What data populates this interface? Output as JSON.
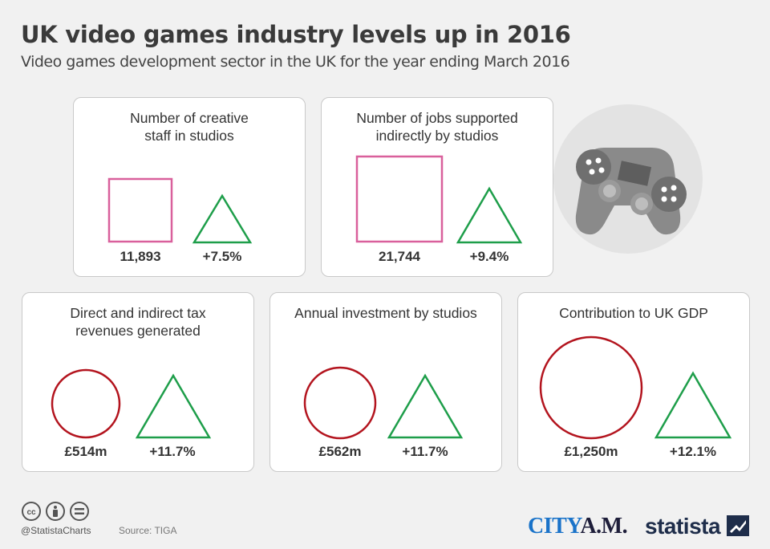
{
  "header": {
    "title": "UK video games industry levels up in 2016",
    "subtitle": "Video games development sector in the UK for the year ending March 2016"
  },
  "cards": [
    {
      "label": "Number of creative staff in studios",
      "value": "11,893",
      "change": "+7.5%"
    },
    {
      "label": "Number of jobs supported indirectly by studios",
      "value": "21,744",
      "change": "+9.4%"
    },
    {
      "label": "Direct and indirect tax revenues generated",
      "value": "£514m",
      "change": "+11.7%"
    },
    {
      "label": "Annual investment by studios",
      "value": "£562m",
      "change": "+11.7%"
    },
    {
      "label": "Contribution to UK GDP",
      "value": "£1,250m",
      "change": "+12.1%"
    }
  ],
  "colors": {
    "square": "#d9609c",
    "circle": "#b3141e",
    "triangle": "#1e9e4a",
    "card_border": "#c9c9c9",
    "background": "#f1f1f1"
  },
  "icons": {
    "illustration": "game-controller-icon",
    "license": [
      "cc-icon",
      "by-icon",
      "nd-icon"
    ]
  },
  "footer": {
    "handle": "@StatistaCharts",
    "source": "Source: TIGA",
    "brand1_a": "CITY",
    "brand1_b": "A.M.",
    "brand2": "statista"
  }
}
